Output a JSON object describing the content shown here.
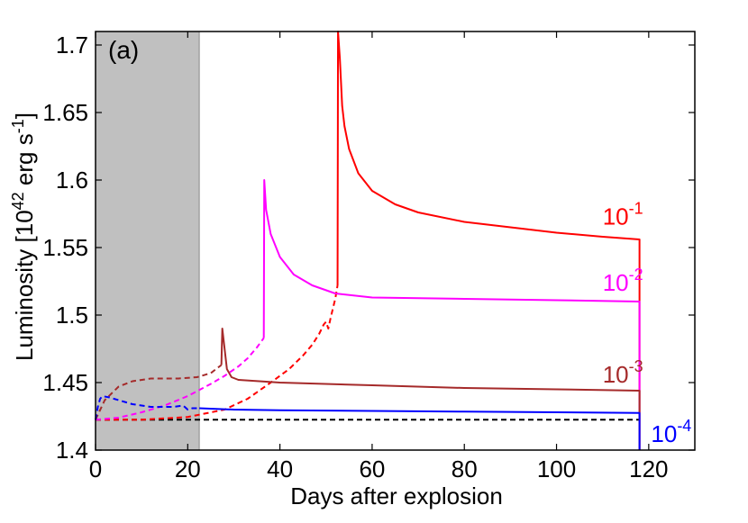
{
  "chart_data": {
    "type": "line",
    "panel_label": "(a)",
    "xlabel": "Days after explosion",
    "ylabel_parts": {
      "base": "Luminosity [10",
      "exp1": "42",
      "mid": " erg s",
      "exp2": "-1",
      "end": "]"
    },
    "xlim": [
      0,
      130
    ],
    "ylim": [
      1.4,
      1.71
    ],
    "xticks": [
      0,
      20,
      40,
      60,
      80,
      100,
      120
    ],
    "yticks": [
      1.4,
      1.45,
      1.5,
      1.55,
      1.6,
      1.65,
      1.7
    ],
    "xtick_labels": [
      "0",
      "20",
      "40",
      "60",
      "80",
      "100",
      "120"
    ],
    "ytick_labels": [
      "1.4",
      "1.45",
      "1.5",
      "1.55",
      "1.6",
      "1.65",
      "1.7"
    ],
    "grid": false,
    "shaded_region": {
      "x": [
        0,
        22.5
      ],
      "color": "#c0c0c0"
    },
    "baseline": {
      "y": 1.4225,
      "x": [
        0,
        118
      ],
      "color": "#000000",
      "style": "dashed"
    },
    "series": [
      {
        "label_base": "10",
        "label_exp": "-1",
        "label_pos": [
          110,
          1.567
        ],
        "color": "#ff0000",
        "dashed": [
          [
            0,
            1.4225
          ],
          [
            10,
            1.4225
          ],
          [
            20,
            1.4245
          ],
          [
            28,
            1.43
          ],
          [
            33,
            1.438
          ],
          [
            38,
            1.45
          ],
          [
            42,
            1.46
          ],
          [
            45,
            1.47
          ],
          [
            47,
            1.478
          ],
          [
            48.5,
            1.486
          ],
          [
            49.5,
            1.493
          ],
          [
            50,
            1.495
          ],
          [
            50.5,
            1.49
          ],
          [
            51,
            1.498
          ],
          [
            51.5,
            1.505
          ],
          [
            52,
            1.512
          ],
          [
            52.5,
            1.522
          ]
        ],
        "solid": [
          [
            52.5,
            1.522
          ],
          [
            52.6,
            1.71
          ],
          [
            53,
            1.69
          ],
          [
            53.5,
            1.655
          ],
          [
            54,
            1.64
          ],
          [
            55,
            1.623
          ],
          [
            57,
            1.605
          ],
          [
            60,
            1.592
          ],
          [
            65,
            1.582
          ],
          [
            70,
            1.576
          ],
          [
            80,
            1.569
          ],
          [
            90,
            1.565
          ],
          [
            100,
            1.561
          ],
          [
            110,
            1.558
          ],
          [
            118,
            1.556
          ],
          [
            118,
            1.4
          ]
        ]
      },
      {
        "label_base": "10",
        "label_exp": "-2",
        "label_pos": [
          110,
          1.518
        ],
        "color": "#ff00ff",
        "dashed": [
          [
            0,
            1.4225
          ],
          [
            5,
            1.424
          ],
          [
            10,
            1.428
          ],
          [
            15,
            1.433
          ],
          [
            20,
            1.44
          ],
          [
            25,
            1.449
          ],
          [
            28,
            1.455
          ],
          [
            31,
            1.462
          ],
          [
            33,
            1.468
          ],
          [
            35,
            1.476
          ],
          [
            36.5,
            1.483
          ]
        ],
        "solid": [
          [
            36.5,
            1.483
          ],
          [
            36.6,
            1.6
          ],
          [
            37,
            1.578
          ],
          [
            38,
            1.56
          ],
          [
            40,
            1.543
          ],
          [
            43,
            1.53
          ],
          [
            47,
            1.522
          ],
          [
            52,
            1.516
          ],
          [
            60,
            1.513
          ],
          [
            80,
            1.512
          ],
          [
            100,
            1.511
          ],
          [
            118,
            1.51
          ],
          [
            118,
            1.4
          ]
        ]
      },
      {
        "label_base": "10",
        "label_exp": "-3",
        "label_pos": [
          110,
          1.45
        ],
        "color": "#a52a2a",
        "dashed": [
          [
            0,
            1.4225
          ],
          [
            2,
            1.437
          ],
          [
            5,
            1.447
          ],
          [
            8,
            1.451
          ],
          [
            12,
            1.453
          ],
          [
            18,
            1.453
          ],
          [
            22,
            1.454
          ],
          [
            25,
            1.457
          ],
          [
            27.3,
            1.463
          ]
        ],
        "solid": [
          [
            27.3,
            1.463
          ],
          [
            27.5,
            1.49
          ],
          [
            28,
            1.475
          ],
          [
            28.5,
            1.46
          ],
          [
            29.5,
            1.454
          ],
          [
            31,
            1.452
          ],
          [
            40,
            1.45
          ],
          [
            60,
            1.448
          ],
          [
            80,
            1.446
          ],
          [
            100,
            1.445
          ],
          [
            118,
            1.444
          ],
          [
            118,
            1.4
          ]
        ]
      },
      {
        "label_base": "10",
        "label_exp": "-4",
        "label_pos": [
          120.5,
          1.406
        ],
        "color": "#0000ff",
        "dashed": [
          [
            0,
            1.4225
          ],
          [
            0.5,
            1.432
          ],
          [
            1,
            1.438
          ],
          [
            1.5,
            1.44
          ],
          [
            3,
            1.439
          ],
          [
            5,
            1.437
          ],
          [
            8,
            1.434
          ],
          [
            12,
            1.432
          ],
          [
            17,
            1.432
          ],
          [
            19,
            1.433
          ],
          [
            20,
            1.43
          ],
          [
            21,
            1.431
          ],
          [
            22.5,
            1.431
          ]
        ],
        "solid": [
          [
            22.5,
            1.431
          ],
          [
            30,
            1.43
          ],
          [
            40,
            1.4295
          ],
          [
            60,
            1.429
          ],
          [
            80,
            1.4285
          ],
          [
            100,
            1.428
          ],
          [
            118,
            1.4275
          ],
          [
            118,
            1.4
          ]
        ]
      }
    ]
  }
}
